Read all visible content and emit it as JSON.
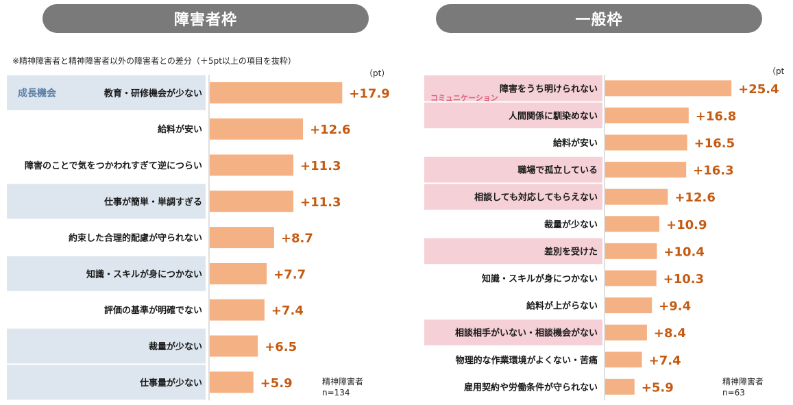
{
  "note": "※精神障害者と精神障害者以外の障害者との差分（＋5pt以上の項目を抜粋）",
  "chart_data": [
    {
      "type": "bar",
      "title": "障害者枠",
      "unit": "（pt）",
      "sample": "精神障害者",
      "n": "n=134",
      "group_labels": [
        {
          "label": "成長機会",
          "rows": [
            0
          ]
        }
      ],
      "highlight_rows": [
        0,
        3,
        5,
        7,
        8
      ],
      "categories": [
        "教育・研修機会が少ない",
        "給料が安い",
        "障害のことで気をつかわれすぎて逆につらい",
        "仕事が簡単・単調すぎる",
        "約束した合理的配慮が守られない",
        "知識・スキルが身につかない",
        "評価の基準が明確でない",
        "裁量が少ない",
        "仕事量が少ない"
      ],
      "values": [
        17.9,
        12.6,
        11.3,
        11.3,
        8.7,
        7.7,
        7.4,
        6.5,
        5.9
      ],
      "value_labels": [
        "+17.9",
        "+12.6",
        "+11.3",
        "+11.3",
        "+8.7",
        "+7.7",
        "+7.4",
        "+6.5",
        "+5.9"
      ]
    },
    {
      "type": "bar",
      "title": "一般枠",
      "unit": "（pt",
      "sample": "精神障害者",
      "n": "n=63",
      "group_labels": [
        {
          "label": "コミュニケーション",
          "rows": [
            0,
            1
          ]
        }
      ],
      "highlight_rows": [
        0,
        1,
        3,
        4,
        6,
        9
      ],
      "categories": [
        "障害をうち明けられない",
        "人間関係に馴染めない",
        "給料が安い",
        "職場で孤立している",
        "相談しても対応してもらえない",
        "裁量が少ない",
        "差別を受けた",
        "知識・スキルが身につかない",
        "給料が上がらない",
        "相談相手がいない・相談機会がない",
        "物理的な作業環境がよくない・苦痛",
        "雇用契約や労働条件が守られない"
      ],
      "values": [
        25.4,
        16.8,
        16.5,
        16.3,
        12.6,
        10.9,
        10.4,
        10.3,
        9.4,
        8.4,
        7.4,
        5.9
      ],
      "value_labels": [
        "+25.4",
        "+16.8",
        "+16.5",
        "+16.3",
        "+12.6",
        "+10.9",
        "+10.4",
        "+10.3",
        "+9.4",
        "+8.4",
        "+7.4",
        "+5.9"
      ]
    }
  ],
  "colors": {
    "bar": "#f4b183",
    "value_text": "#c55a11",
    "left_highlight": "#dde6ee",
    "right_highlight": "#f5d0d6",
    "group_left_text": "#5b7fa6",
    "group_right_text": "#e05a78",
    "pill": "#7b7a7a"
  }
}
